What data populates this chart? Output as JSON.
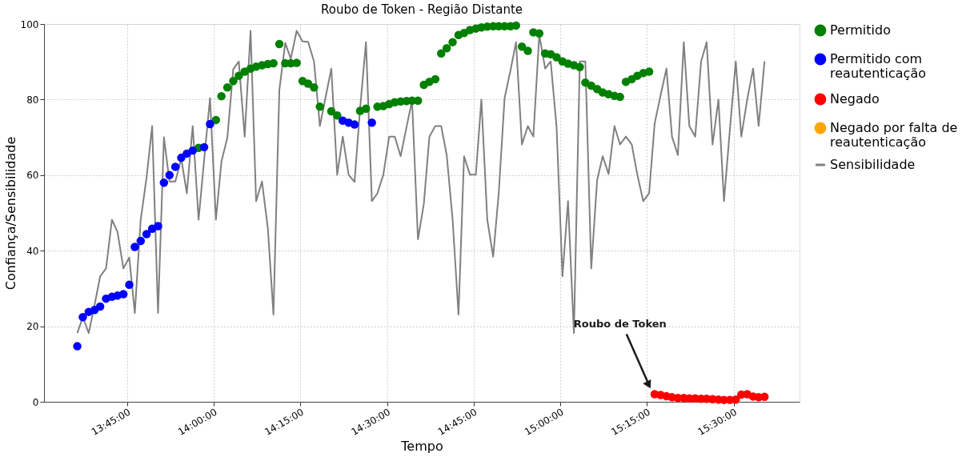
{
  "chart_data": {
    "type": "scatter",
    "title": "Roubo de Token - Região Distante",
    "xlabel": "Tempo",
    "ylabel": "Confiança/Sensibilidade",
    "x": [
      13.606,
      13.622,
      13.639,
      13.656,
      13.672,
      13.689,
      13.706,
      13.722,
      13.739,
      13.756,
      13.772,
      13.789,
      13.806,
      13.822,
      13.839,
      13.856,
      13.872,
      13.889,
      13.906,
      13.922,
      13.939,
      13.956,
      13.972,
      13.989,
      14.006,
      14.022,
      14.039,
      14.056,
      14.072,
      14.089,
      14.106,
      14.122,
      14.139,
      14.156,
      14.172,
      14.189,
      14.206,
      14.222,
      14.239,
      14.256,
      14.272,
      14.289,
      14.306,
      14.322,
      14.339,
      14.356,
      14.372,
      14.389,
      14.406,
      14.422,
      14.439,
      14.456,
      14.472,
      14.489,
      14.506,
      14.522,
      14.539,
      14.556,
      14.572,
      14.589,
      14.606,
      14.622,
      14.639,
      14.656,
      14.672,
      14.689,
      14.706,
      14.722,
      14.739,
      14.756,
      14.772,
      14.789,
      14.806,
      14.822,
      14.839,
      14.856,
      14.872,
      14.889,
      14.906,
      14.922,
      14.939,
      14.956,
      14.972,
      14.989,
      15.006,
      15.022,
      15.039,
      15.056,
      15.072,
      15.089,
      15.106,
      15.122,
      15.139,
      15.156,
      15.172,
      15.189,
      15.206,
      15.222,
      15.239,
      15.256,
      15.272,
      15.289,
      15.306,
      15.322,
      15.339,
      15.356,
      15.372,
      15.389,
      15.406,
      15.422,
      15.439,
      15.456,
      15.472,
      15.489,
      15.506,
      15.522,
      15.539,
      15.556,
      15.572,
      15.589
    ],
    "series": [
      {
        "name": "Sensibilidade",
        "type": "line",
        "color": "#808080",
        "line_style": "solid",
        "marker": "none",
        "values": [
          18.2,
          22.4,
          18.2,
          25.7,
          33.2,
          35.3,
          48.2,
          45.0,
          35.3,
          38.2,
          23.5,
          48.2,
          59.4,
          73.0,
          23.5,
          70.0,
          58.3,
          58.3,
          64.4,
          55.2,
          73.0,
          48.2,
          64.0,
          80.4,
          48.2,
          63.6,
          69.9,
          88.0,
          90.1,
          70.2,
          98.2,
          53.1,
          58.3,
          45.8,
          23.1,
          82.5,
          95.0,
          90.8,
          98.2,
          95.4,
          95.3,
          90.1,
          73.0,
          80.4,
          88.2,
          60.1,
          70.2,
          60.1,
          58.2,
          77.6,
          95.2,
          53.1,
          55.2,
          60.1,
          70.2,
          70.2,
          65.0,
          72.7,
          79.7,
          43.0,
          52.4,
          70.2,
          73.0,
          73.0,
          65.3,
          48.2,
          23.1,
          65.0,
          60.1,
          60.1,
          80.0,
          48.2,
          38.4,
          55.2,
          80.4,
          87.7,
          95.2,
          68.1,
          73.0,
          70.2,
          97.1,
          88.2,
          90.1,
          72.7,
          33.2,
          53.1,
          18.2,
          90.1,
          90.1,
          35.3,
          58.7,
          65.0,
          60.3,
          73.0,
          68.1,
          70.2,
          68.1,
          60.1,
          53.1,
          55.2,
          73.7,
          81.1,
          88.2,
          70.2,
          65.3,
          95.2,
          73.0,
          70.2,
          90.1,
          95.2,
          68.1,
          80.0,
          53.1,
          72.0,
          90.1,
          70.2,
          80.0,
          88.2,
          73.0,
          90.1
        ]
      },
      {
        "name": "Permitido",
        "color": "#008000",
        "values": [
          null,
          null,
          null,
          null,
          null,
          null,
          null,
          null,
          null,
          null,
          null,
          null,
          null,
          null,
          null,
          null,
          null,
          null,
          null,
          null,
          null,
          67.2,
          null,
          null,
          74.6,
          80.9,
          83.2,
          84.9,
          86.3,
          87.4,
          88.2,
          88.7,
          89.1,
          89.4,
          89.6,
          94.7,
          89.6,
          89.6,
          89.7,
          84.9,
          84.2,
          83.2,
          78.1,
          null,
          76.9,
          75.8,
          null,
          null,
          null,
          77.0,
          77.6,
          null,
          78.1,
          78.3,
          78.8,
          79.3,
          79.5,
          79.6,
          79.7,
          79.7,
          83.9,
          84.7,
          85.4,
          92.2,
          93.6,
          95.2,
          97.1,
          97.6,
          98.4,
          98.8,
          99.1,
          99.3,
          99.4,
          99.4,
          99.4,
          99.4,
          99.6,
          94.0,
          92.9,
          97.8,
          97.5,
          92.2,
          92.0,
          91.2,
          90.1,
          89.5,
          89.1,
          88.6,
          84.5,
          83.7,
          82.8,
          81.9,
          81.4,
          81.0,
          80.7,
          84.7,
          85.4,
          86.3,
          87.0,
          87.4,
          null,
          null,
          null,
          null,
          null,
          null,
          null,
          null,
          null,
          null,
          null,
          null,
          null,
          null,
          null,
          null,
          null,
          null,
          null,
          null
        ]
      },
      {
        "name": "Permitido com reautenticação",
        "color": "#0000ff",
        "values": [
          14.7,
          22.4,
          23.8,
          24.3,
          25.2,
          27.3,
          27.8,
          28.1,
          28.5,
          31.0,
          41.0,
          42.6,
          44.4,
          45.8,
          46.5,
          58.0,
          60.0,
          62.2,
          64.6,
          65.7,
          66.5,
          null,
          67.4,
          73.5,
          null,
          null,
          null,
          null,
          null,
          null,
          null,
          null,
          null,
          null,
          null,
          null,
          null,
          null,
          null,
          null,
          null,
          null,
          null,
          null,
          null,
          null,
          74.4,
          73.9,
          73.4,
          null,
          null,
          73.9,
          null,
          null,
          null,
          null,
          null,
          null,
          null,
          null,
          null,
          null,
          null,
          null,
          null,
          null,
          null,
          null,
          null,
          null,
          null,
          null,
          null,
          null,
          null,
          null,
          null,
          null,
          null,
          null,
          null,
          null,
          null,
          null,
          null,
          null,
          null,
          null,
          null,
          null,
          null,
          null,
          null,
          null,
          null,
          null,
          null,
          null,
          null,
          null,
          null,
          null,
          null,
          null,
          null,
          null,
          null,
          null,
          null,
          null,
          null,
          null,
          null,
          null,
          null,
          null,
          null,
          null,
          null,
          null
        ]
      },
      {
        "name": "Negado",
        "color": "#ff0000",
        "values": [
          null,
          null,
          null,
          null,
          null,
          null,
          null,
          null,
          null,
          null,
          null,
          null,
          null,
          null,
          null,
          null,
          null,
          null,
          null,
          null,
          null,
          null,
          null,
          null,
          null,
          null,
          null,
          null,
          null,
          null,
          null,
          null,
          null,
          null,
          null,
          null,
          null,
          null,
          null,
          null,
          null,
          null,
          null,
          null,
          null,
          null,
          null,
          null,
          null,
          null,
          null,
          null,
          null,
          null,
          null,
          null,
          null,
          null,
          null,
          null,
          null,
          null,
          null,
          null,
          null,
          null,
          null,
          null,
          null,
          null,
          null,
          null,
          null,
          null,
          null,
          null,
          null,
          null,
          null,
          null,
          null,
          null,
          null,
          null,
          null,
          null,
          null,
          null,
          null,
          null,
          null,
          null,
          null,
          null,
          null,
          null,
          null,
          null,
          null,
          null,
          2.0,
          1.8,
          1.5,
          1.2,
          1.0,
          1.0,
          0.9,
          0.9,
          0.8,
          0.8,
          0.7,
          0.6,
          0.5,
          0.5,
          0.6,
          1.9,
          2.0,
          1.4,
          1.2,
          1.3
        ]
      },
      {
        "name": "Negado por falta de reautenticação",
        "color": "#ffa500",
        "values": [
          null,
          null,
          null,
          null,
          null,
          null,
          null,
          null,
          null,
          null,
          null,
          null,
          null,
          null,
          null,
          null,
          null,
          null,
          null,
          null,
          null,
          null,
          null,
          null,
          null,
          null,
          null,
          null,
          null,
          null,
          null,
          null,
          null,
          null,
          null,
          null,
          null,
          null,
          null,
          null,
          null,
          null,
          null,
          null,
          null,
          null,
          null,
          null,
          null,
          null,
          null,
          null,
          null,
          null,
          null,
          null,
          null,
          null,
          null,
          null,
          null,
          null,
          null,
          null,
          null,
          null,
          null,
          null,
          null,
          null,
          null,
          null,
          null,
          null,
          null,
          null,
          null,
          null,
          null,
          null,
          null,
          null,
          null,
          null,
          null,
          null,
          null,
          null,
          null,
          null,
          null,
          null,
          null,
          null,
          null,
          null,
          null,
          null,
          null,
          null,
          null,
          null,
          null,
          null,
          null,
          null,
          null,
          null,
          null,
          null,
          null,
          null,
          null,
          null,
          null,
          null,
          null,
          null,
          null,
          null
        ]
      }
    ],
    "xlim": [
      13.51,
      15.69
    ],
    "ylim": [
      0,
      100
    ],
    "xticks": [
      {
        "value": 13.75,
        "label": "13:45:00"
      },
      {
        "value": 14.0,
        "label": "14:00:00"
      },
      {
        "value": 14.25,
        "label": "14:15:00"
      },
      {
        "value": 14.5,
        "label": "14:30:00"
      },
      {
        "value": 14.75,
        "label": "14:45:00"
      },
      {
        "value": 15.0,
        "label": "15:00:00"
      },
      {
        "value": 15.25,
        "label": "15:15:00"
      },
      {
        "value": 15.5,
        "label": "15:30:00"
      }
    ],
    "yticks": [
      0,
      20,
      40,
      60,
      80,
      100
    ],
    "annotations": [
      {
        "text": "Roubo de Token",
        "x": 15.26,
        "y": 3.5
      }
    ],
    "grid": true,
    "legend": "right",
    "marker": "circle"
  }
}
